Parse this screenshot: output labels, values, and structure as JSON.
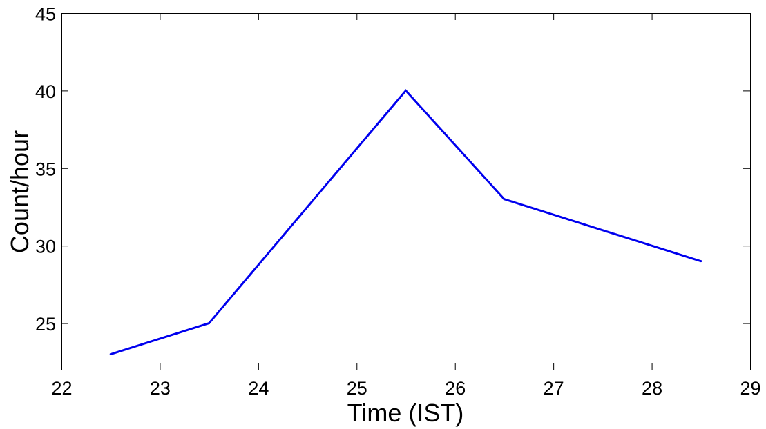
{
  "chart_data": {
    "type": "line",
    "title": "",
    "xlabel": "Time (IST)",
    "ylabel": "Count/hour",
    "xlim": [
      22,
      29
    ],
    "ylim": [
      22,
      45
    ],
    "xticks": [
      "22",
      "23",
      "24",
      "25",
      "26",
      "27",
      "28",
      "29"
    ],
    "yticks": [
      "25",
      "30",
      "35",
      "40",
      "45"
    ],
    "grid": false,
    "series": [
      {
        "color": "#0000ee",
        "x": [
          22.5,
          23.5,
          25.5,
          26.5,
          28.5
        ],
        "y": [
          23,
          25,
          40,
          33,
          29
        ]
      }
    ]
  }
}
